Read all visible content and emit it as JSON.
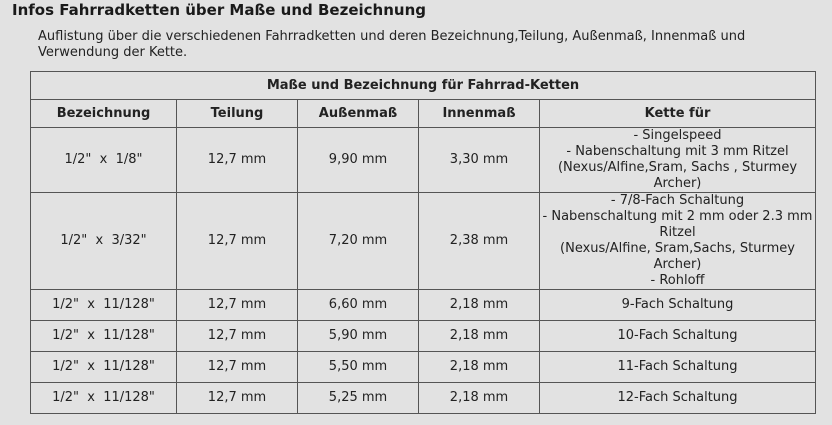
{
  "page": {
    "title": "Infos Fahrradketten über Maße und Bezeichnung",
    "intro": "Auflistung über die verschiedenen Fahrradketten und deren Bezeichnung,Teilung, Außenmaß, Innenmaß und Verwendung der Kette."
  },
  "table": {
    "caption": "Maße und Bezeichnung für Fahrrad-Ketten",
    "headers": [
      "Bezeichnung",
      "Teilung",
      "Außenmaß",
      "Innenmaß",
      "Kette für"
    ],
    "rows": [
      {
        "bezeichnung": "1/2\"  x  1/8\"",
        "teilung": "12,7 mm",
        "aussenmass": "9,90 mm",
        "innenmass": "3,30 mm",
        "kette_fuer": [
          "- Singelspeed",
          "- Nabenschaltung mit 3  mm Ritzel",
          "(Nexus/Alfine,Sram, Sachs , Sturmey",
          "Archer)"
        ]
      },
      {
        "bezeichnung": "1/2\"  x  3/32\"",
        "teilung": "12,7 mm",
        "aussenmass": "7,20 mm",
        "innenmass": "2,38 mm",
        "kette_fuer": [
          "- 7/8-Fach Schaltung",
          "- Nabenschaltung mit 2 mm oder 2.3 mm",
          "Ritzel",
          "(Nexus/Alfine, Sram,Sachs, Sturmey",
          "Archer)",
          "- Rohloff"
        ]
      },
      {
        "bezeichnung": "1/2\"  x  11/128\"",
        "teilung": "12,7 mm",
        "aussenmass": "6,60 mm",
        "innenmass": "2,18 mm",
        "kette_fuer": [
          "9-Fach Schaltung"
        ]
      },
      {
        "bezeichnung": "1/2\"  x  11/128\"",
        "teilung": "12,7 mm",
        "aussenmass": "5,90 mm",
        "innenmass": "2,18 mm",
        "kette_fuer": [
          "10-Fach Schaltung"
        ]
      },
      {
        "bezeichnung": "1/2\"  x  11/128\"",
        "teilung": "12,7 mm",
        "aussenmass": "5,50 mm",
        "innenmass": "2,18 mm",
        "kette_fuer": [
          "11-Fach Schaltung"
        ]
      },
      {
        "bezeichnung": "1/2\"  x  11/128\"",
        "teilung": "12,7 mm",
        "aussenmass": "5,25 mm",
        "innenmass": "2,18 mm",
        "kette_fuer": [
          "12-Fach Schaltung"
        ]
      }
    ]
  }
}
